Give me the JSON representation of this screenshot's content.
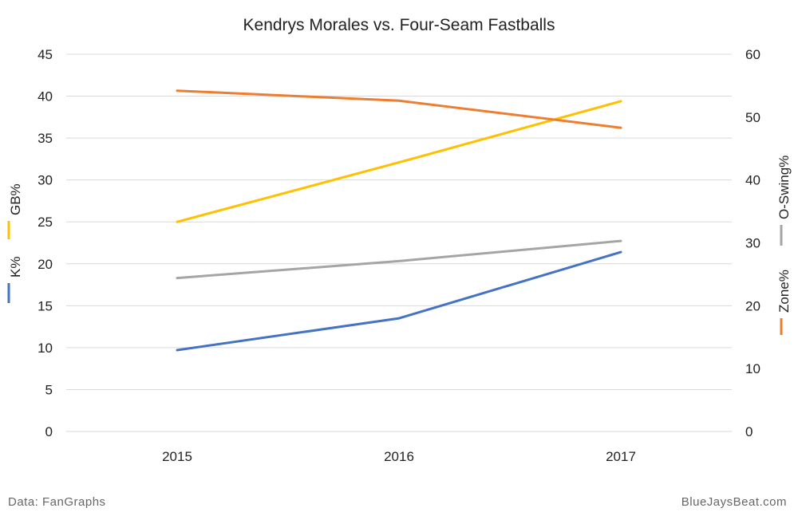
{
  "chart_data": {
    "type": "line",
    "title": "Kendrys Morales vs. Four-Seam Fastballs",
    "categories": [
      "2015",
      "2016",
      "2017"
    ],
    "y_left": {
      "ylim": [
        0,
        45
      ],
      "ticks": [
        0,
        5,
        10,
        15,
        20,
        25,
        30,
        35,
        40,
        45
      ]
    },
    "y_right": {
      "ylim": [
        0,
        60
      ],
      "ticks": [
        0,
        10,
        20,
        30,
        40,
        50,
        60
      ]
    },
    "grid": true,
    "series": [
      {
        "name": "GB%",
        "axis": "left",
        "color": "#ffc000",
        "values": [
          25.0,
          32.1,
          39.4
        ]
      },
      {
        "name": "K%",
        "axis": "left",
        "color": "#4472c4",
        "values": [
          9.7,
          13.5,
          21.4
        ]
      },
      {
        "name": "O-Swing%",
        "axis": "right",
        "color": "#a5a5a5",
        "values": [
          24.4,
          27.1,
          30.3
        ]
      },
      {
        "name": "Zone%",
        "axis": "right",
        "color": "#ed7d31",
        "values": [
          54.2,
          52.6,
          48.3
        ]
      }
    ]
  },
  "footer": {
    "source": "Data: FanGraphs",
    "site": "BlueJaysBeat.com"
  }
}
